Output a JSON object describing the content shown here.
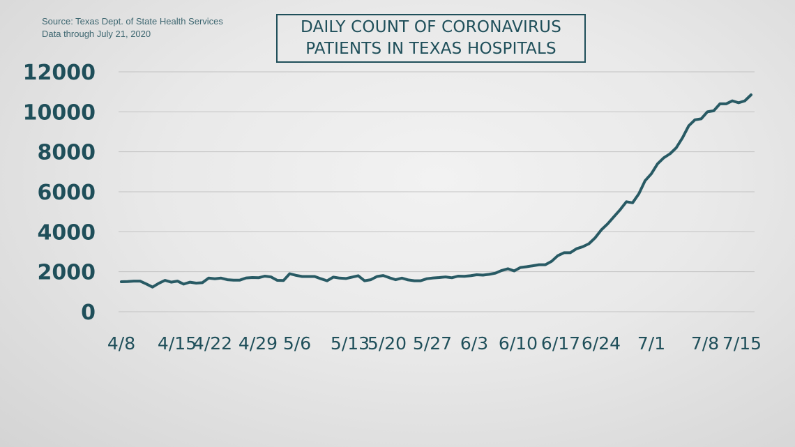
{
  "source": {
    "line1": "Source: Texas Dept. of State Health Services",
    "line2": "Data through July 21, 2020"
  },
  "title": {
    "line1": "DAILY COUNT OF CORONAVIRUS",
    "line2": "PATIENTS IN TEXAS HOSPITALS"
  },
  "colors": {
    "line": "#285a64",
    "text": "#1f4f5a",
    "grid": "#c2c2c2"
  },
  "chart_data": {
    "type": "line",
    "title": "DAILY COUNT OF CORONAVIRUS PATIENTS IN TEXAS HOSPITALS",
    "ylim": [
      0,
      12000
    ],
    "yticks": [
      0,
      2000,
      4000,
      6000,
      8000,
      10000,
      12000
    ],
    "xtick_labels": [
      "4/8",
      "4/15",
      "4/22",
      "4/29",
      "5/6",
      "5/13",
      "5/20",
      "5/27",
      "6/3",
      "6/10",
      "6/17",
      "6/24",
      "7/1",
      "7/8",
      "7/15"
    ],
    "grid": "horizontal",
    "series": [
      {
        "start_date": "4/8",
        "values": [
          1500,
          1510,
          1530,
          1530,
          1390,
          1230,
          1420,
          1570,
          1480,
          1530,
          1380,
          1480,
          1430,
          1450,
          1680,
          1650,
          1680,
          1600,
          1580,
          1580,
          1690,
          1710,
          1700,
          1780,
          1740,
          1570,
          1560,
          1900,
          1820,
          1760,
          1760,
          1760,
          1650,
          1550,
          1730,
          1680,
          1660,
          1730,
          1800,
          1550,
          1600,
          1760,
          1810,
          1700,
          1600,
          1680,
          1590,
          1550,
          1550,
          1650,
          1690,
          1710,
          1740,
          1700,
          1780,
          1770,
          1800,
          1850,
          1830,
          1870,
          1930,
          2060,
          2150,
          2040,
          2210,
          2250,
          2300,
          2350,
          2350,
          2520,
          2800,
          2950,
          2950,
          3150,
          3250,
          3400,
          3700,
          4100,
          4400,
          4750,
          5100,
          5500,
          5450,
          5900,
          6550,
          6900,
          7400,
          7700,
          7900,
          8200,
          8700,
          9300,
          9600,
          9650,
          10000,
          10050,
          10400,
          10400,
          10550,
          10450,
          10550,
          10850
        ]
      }
    ]
  }
}
